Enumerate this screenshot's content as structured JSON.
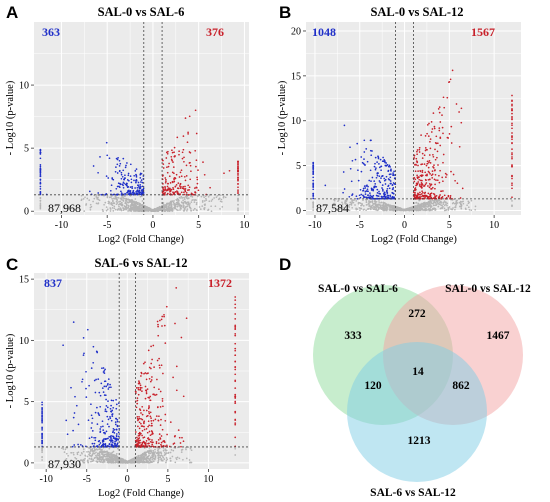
{
  "figure": {
    "panels": [
      "A",
      "B",
      "C",
      "D"
    ]
  },
  "colors": {
    "down": "#1f2fc8",
    "up": "#c8202a",
    "ns": "#b4b4b4",
    "grid_bg": "#ebebeb",
    "venn_a": "#8fdc9b",
    "venn_b": "#f4a3a3",
    "venn_c": "#7fcde6"
  },
  "chart_data": [
    {
      "type": "scatter",
      "panel": "A",
      "title": "SAL-0 vs SAL-6",
      "xlabel": "Log2 (Fold Change)",
      "ylabel": "- Log10 (p-value)",
      "xlim": [
        -13,
        10.5
      ],
      "ylim": [
        -0.3,
        15
      ],
      "xticks": [
        -10,
        -5,
        0,
        5,
        10
      ],
      "yticks": [
        0,
        5,
        10
      ],
      "fc_threshold": [
        -1,
        1
      ],
      "p_threshold": 1.3,
      "counts": {
        "down": "363",
        "up": "376",
        "not_significant": "87,968"
      },
      "extremes": {
        "left_x": -12.3,
        "right_x": 9.3,
        "left_max_y": 5.0,
        "right_max_y": 4.0
      },
      "peaks": {
        "down_max_y": 5.6,
        "up_max_y": 9.3
      },
      "seed": 11
    },
    {
      "type": "scatter",
      "panel": "B",
      "title": "SAL-0 vs SAL-12",
      "xlabel": "Log2 (Fold Change)",
      "ylabel": "- Log10 (p-value)",
      "xlim": [
        -11,
        13
      ],
      "ylim": [
        -0.5,
        21
      ],
      "xticks": [
        -10,
        -5,
        0,
        5,
        10
      ],
      "yticks": [
        0,
        5,
        10,
        15,
        20
      ],
      "fc_threshold": [
        -1,
        1
      ],
      "p_threshold": 1.3,
      "counts": {
        "down": "1048",
        "up": "1567",
        "not_significant": "87,584"
      },
      "extremes": {
        "left_x": -10.2,
        "right_x": 12.0,
        "left_max_y": 5.5,
        "right_max_y": 13.0
      },
      "peaks": {
        "down_max_y": 9.5,
        "up_max_y": 16.0
      },
      "seed": 23
    },
    {
      "type": "scatter",
      "panel": "C",
      "title": "SAL-6 vs SAL-12",
      "xlabel": "Log2 (Fold Change)",
      "ylabel": "- Log10 (p-value)",
      "xlim": [
        -11.5,
        15
      ],
      "ylim": [
        -0.5,
        15.5
      ],
      "xticks": [
        -10,
        -5,
        0,
        5,
        10
      ],
      "yticks": [
        0,
        5,
        10,
        15
      ],
      "fc_threshold": [
        -1,
        1
      ],
      "p_threshold": 1.3,
      "counts": {
        "down": "837",
        "up": "1372",
        "not_significant": "87,930"
      },
      "extremes": {
        "left_x": -10.5,
        "right_x": 13.3,
        "left_max_y": 5.0,
        "right_max_y": 14.0
      },
      "peaks": {
        "down_max_y": 11.5,
        "up_max_y": 14.5
      },
      "seed": 37
    },
    {
      "type": "venn",
      "panel": "D",
      "sets": [
        "SAL-0 vs SAL-6",
        "SAL-0 vs SAL-12",
        "SAL-6 vs SAL-12"
      ],
      "regions": {
        "only_a": "333",
        "only_b": "1467",
        "only_c": "1213",
        "a_b": "272",
        "a_c": "120",
        "b_c": "862",
        "a_b_c": "14"
      }
    }
  ]
}
